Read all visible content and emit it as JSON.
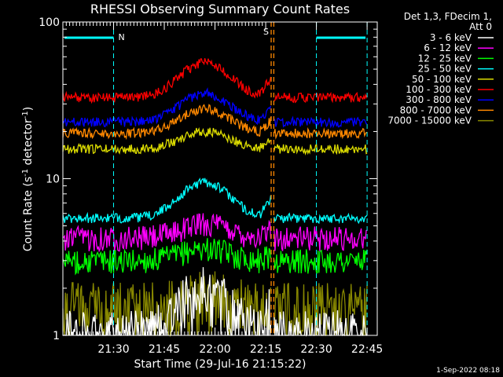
{
  "chart_data": {
    "type": "line",
    "title": "RHESSI Observing Summary Count Rates",
    "xlabel": "Start Time (29-Jul-16 21:15:22)",
    "ylabel_main": "Count Rate (s",
    "ylabel_sup1": "-1",
    "ylabel_mid": " detector",
    "ylabel_sup2": "-1",
    "ylabel_end": ")",
    "y_scale": "log",
    "ylim": [
      1,
      100
    ],
    "y_ticks": [
      {
        "value": 1,
        "label": "1"
      },
      {
        "value": 10,
        "label": "10"
      },
      {
        "value": 100,
        "label": "100"
      }
    ],
    "x_range_minutes": [
      21.25,
      22.8
    ],
    "x_ticks": [
      {
        "value": 21.5,
        "label": "21:30"
      },
      {
        "value": 21.75,
        "label": "21:45"
      },
      {
        "value": 22.0,
        "label": "22:00"
      },
      {
        "value": 22.25,
        "label": "22:15"
      },
      {
        "value": 22.5,
        "label": "22:30"
      },
      {
        "value": 22.75,
        "label": "22:45"
      }
    ],
    "legend_header": [
      "Det 1,3, FDecim 1,",
      "Att 0"
    ],
    "legend_position": "right",
    "series": [
      {
        "name": "3 - 6 keV",
        "color": "#ffffff",
        "base": 1.0,
        "peak": 1.9
      },
      {
        "name": "6 - 12 keV",
        "color": "#ff00ff",
        "base": 4.2,
        "peak": 5.2
      },
      {
        "name": "12 - 25 keV",
        "color": "#00ff00",
        "base": 3.0,
        "peak": 3.6
      },
      {
        "name": "25 - 50 keV",
        "color": "#00ffff",
        "base": 5.6,
        "peak": 9.5
      },
      {
        "name": "50 - 100 keV",
        "color": "#dddd00",
        "base": 15.5,
        "peak": 20.0
      },
      {
        "name": "100 - 300 keV",
        "color": "#ff0000",
        "base": 33.0,
        "peak": 55.0
      },
      {
        "name": "300 - 800 keV",
        "color": "#0000ff",
        "base": 23.0,
        "peak": 35.0
      },
      {
        "name": "800 - 7000 keV",
        "color": "#ff8800",
        "base": 19.5,
        "peak": 28.0
      },
      {
        "name": "7000 - 15000 keV",
        "color": "#888800",
        "base": 1.5,
        "peak": 1.8
      }
    ],
    "annotations": {
      "night_label": "N",
      "saa_label": "S",
      "night_bar_color": "#00ffff",
      "saa_color": "#ff8800"
    },
    "timestamp": "1-Sep-2022 08:18"
  }
}
